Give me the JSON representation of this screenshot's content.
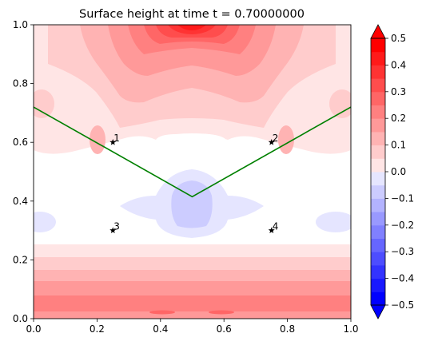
{
  "chart_data": {
    "type": "heatmap",
    "title": "Surface height at time t =     0.70000000",
    "xlabel": "",
    "ylabel": "",
    "xlim": [
      0,
      1
    ],
    "ylim": [
      0,
      1
    ],
    "x_ticks": [
      "0.0",
      "0.2",
      "0.4",
      "0.6",
      "0.8",
      "1.0"
    ],
    "y_ticks": [
      "0.0",
      "0.2",
      "0.4",
      "0.6",
      "0.8",
      "1.0"
    ],
    "colorbar": {
      "min": -0.5,
      "max": 0.5,
      "levels": [
        -0.5,
        -0.45,
        -0.4,
        -0.35,
        -0.3,
        -0.25,
        -0.2,
        -0.15,
        -0.1,
        -0.05,
        0.0,
        0.05,
        0.1,
        0.15,
        0.2,
        0.25,
        0.3,
        0.35,
        0.4,
        0.45,
        0.5
      ],
      "tick_labels": [
        "−0.5",
        "−0.4",
        "−0.3",
        "−0.2",
        "−0.1",
        "0.0",
        "0.1",
        "0.2",
        "0.3",
        "0.4",
        "0.5"
      ],
      "extend": "both",
      "colormap": "bwr"
    },
    "topography_line": {
      "color": "#008000",
      "points": [
        [
          0.0,
          0.72
        ],
        [
          0.5,
          0.415
        ],
        [
          1.0,
          0.72
        ]
      ]
    },
    "gauges": [
      {
        "label": "1",
        "x": 0.25,
        "y": 0.6
      },
      {
        "label": "2",
        "x": 0.75,
        "y": 0.6
      },
      {
        "label": "3",
        "x": 0.25,
        "y": 0.3
      },
      {
        "label": "4",
        "x": 0.75,
        "y": 0.3
      }
    ]
  }
}
